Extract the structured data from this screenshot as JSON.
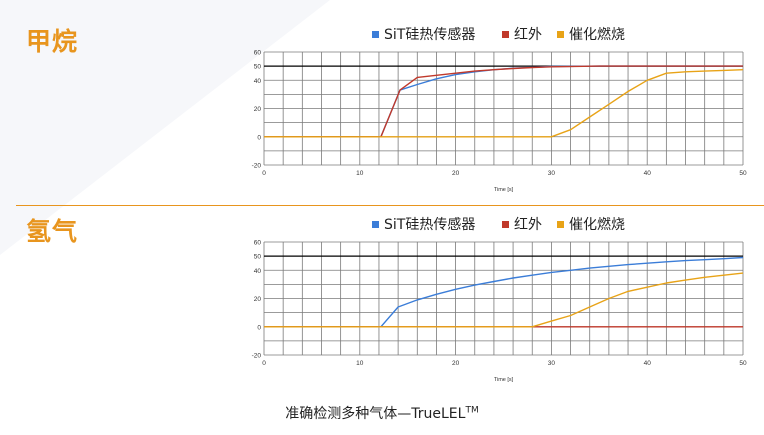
{
  "colors": {
    "accent": "#e8951e",
    "sit": "#3b7dd8",
    "ir": "#c0392b",
    "cat": "#e8a317",
    "threshold": "#000000",
    "grid": "#7a7a7a"
  },
  "sections": [
    {
      "title": "甲烷"
    },
    {
      "title": "氢气"
    }
  ],
  "footer": {
    "text": "准确检测多种气体—TrueLEL",
    "sup": "TM"
  },
  "chart_data": [
    {
      "type": "line",
      "title": "",
      "xlabel": "Time [s]",
      "ylabel": "",
      "xlim": [
        0,
        50
      ],
      "ylim": [
        -20,
        60
      ],
      "xticks": [
        0,
        10,
        20,
        30,
        40,
        50
      ],
      "yticks": [
        -20,
        0,
        20,
        40,
        50,
        60
      ],
      "threshold": 50,
      "grid": true,
      "legend_position": "top",
      "series": [
        {
          "name": "SiT硅热传感器",
          "color": "#3b7dd8",
          "x": [
            0,
            12.2,
            14.2,
            16,
            18,
            20,
            22,
            24,
            26,
            28,
            30,
            35,
            40,
            45,
            50
          ],
          "y": [
            0,
            0,
            33,
            37,
            41,
            44,
            46,
            47.5,
            48.5,
            49.2,
            49.7,
            50,
            50,
            50,
            50
          ]
        },
        {
          "name": "红外",
          "color": "#c0392b",
          "x": [
            0,
            12.2,
            14.2,
            16,
            18,
            20,
            22,
            24,
            26,
            28,
            30,
            35,
            40,
            45,
            50
          ],
          "y": [
            0,
            0,
            33,
            42,
            43.5,
            45,
            46.5,
            47.5,
            48.3,
            49,
            49.5,
            50,
            50,
            50,
            50
          ]
        },
        {
          "name": "催化燃烧",
          "color": "#e8a317",
          "x": [
            0,
            30,
            32,
            34,
            36,
            38,
            40,
            42,
            44,
            46,
            48,
            50
          ],
          "y": [
            0,
            0,
            5,
            14,
            23,
            32,
            40,
            45,
            46,
            46.5,
            47,
            47.5
          ]
        }
      ]
    },
    {
      "type": "line",
      "title": "",
      "xlabel": "Time [s]",
      "ylabel": "",
      "xlim": [
        0,
        50
      ],
      "ylim": [
        -20,
        60
      ],
      "xticks": [
        0,
        10,
        20,
        30,
        40,
        50
      ],
      "yticks": [
        -20,
        0,
        20,
        40,
        50,
        60
      ],
      "threshold": 50,
      "grid": true,
      "legend_position": "top",
      "series": [
        {
          "name": "SiT硅热传感器",
          "color": "#3b7dd8",
          "x": [
            0,
            12.2,
            14,
            16,
            18,
            20,
            22,
            24,
            26,
            28,
            30,
            32,
            34,
            36,
            38,
            40,
            42,
            44,
            46,
            48,
            50
          ],
          "y": [
            0,
            0,
            14,
            19,
            23,
            26.5,
            29.5,
            32,
            34.5,
            36.5,
            38.5,
            40,
            41.5,
            42.8,
            44,
            45,
            46,
            46.8,
            47.5,
            48.2,
            49
          ]
        },
        {
          "name": "红外",
          "color": "#c0392b",
          "x": [
            0,
            50
          ],
          "y": [
            0,
            0
          ]
        },
        {
          "name": "催化燃烧",
          "color": "#e8a317",
          "x": [
            0,
            28,
            30,
            32,
            34,
            36,
            38,
            40,
            42,
            44,
            46,
            48,
            50
          ],
          "y": [
            0,
            0,
            4,
            8,
            14,
            20,
            25,
            28,
            31,
            33,
            35,
            36.5,
            38
          ]
        }
      ]
    }
  ]
}
